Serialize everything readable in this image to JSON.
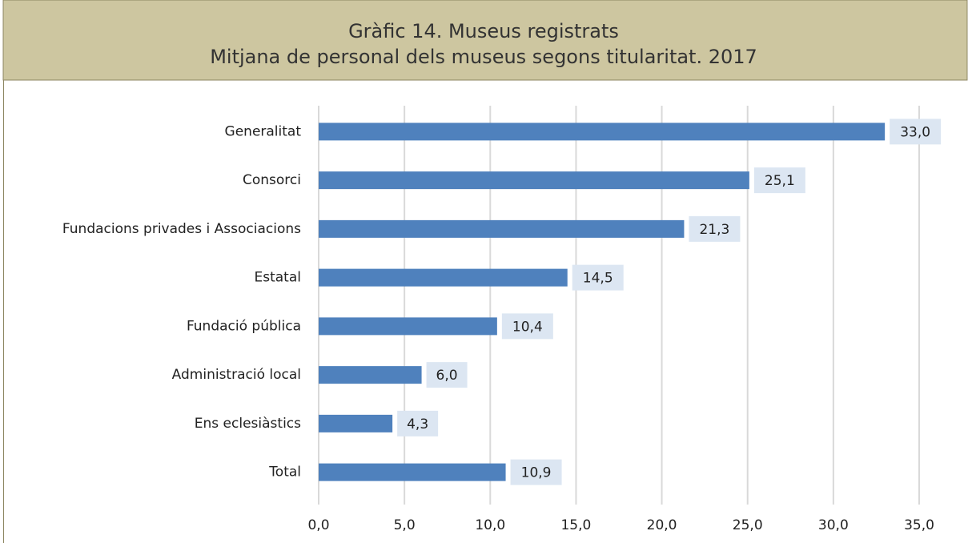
{
  "chart_data": {
    "type": "bar",
    "orientation": "horizontal",
    "title": "Gràfic 14. Museus registrats",
    "subtitle": "Mitjana de personal dels museus segons titularitat. 2017",
    "categories": [
      "Generalitat",
      "Consorci",
      "Fundacions privades i Associacions",
      "Estatal",
      "Fundació pública",
      "Administració local",
      "Ens eclesiàstics",
      "Total"
    ],
    "values": [
      33.0,
      25.1,
      21.3,
      14.5,
      10.4,
      6.0,
      4.3,
      10.9
    ],
    "value_labels": [
      "33,0",
      "25,1",
      "21,3",
      "14,5",
      "10,4",
      "6,0",
      "4,3",
      "10,9"
    ],
    "color": "#4f81bd",
    "xlim": [
      0,
      35
    ],
    "xticks": [
      {
        "value": 0,
        "label": "0,0"
      },
      {
        "value": 5,
        "label": "5,0"
      },
      {
        "value": 10,
        "label": "10,0"
      },
      {
        "value": 15,
        "label": "15,0"
      },
      {
        "value": 20,
        "label": "20,0"
      },
      {
        "value": 25,
        "label": "25,0"
      },
      {
        "value": 30,
        "label": "30,0"
      },
      {
        "value": 35,
        "label": "35,0"
      }
    ],
    "grid": true
  }
}
